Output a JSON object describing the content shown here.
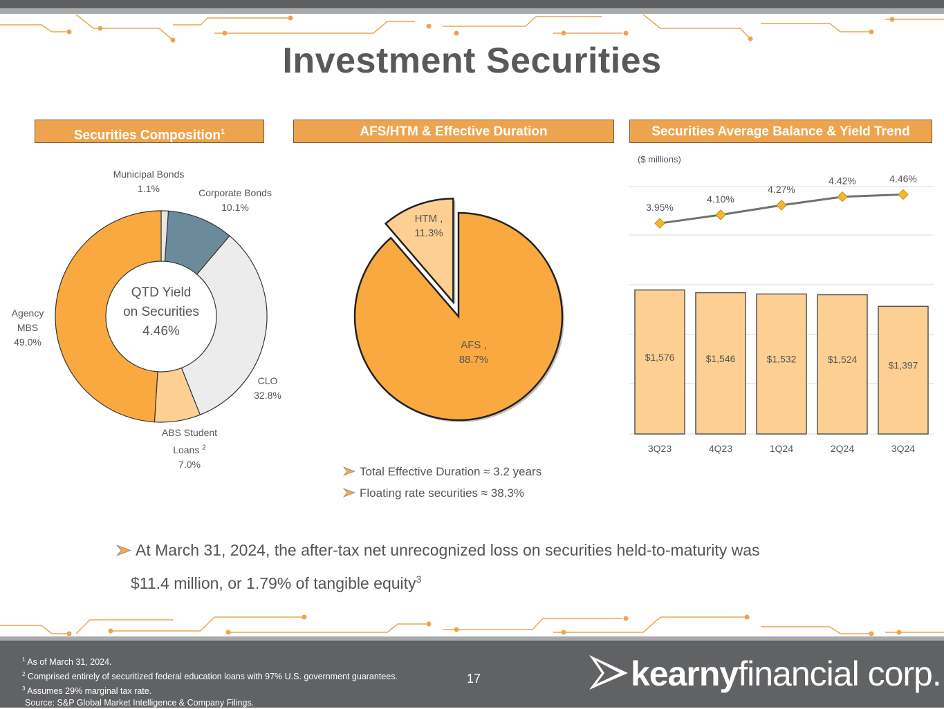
{
  "slide_title": "Investment Securities",
  "panels": {
    "composition_title": "Securities Composition",
    "composition_sup": "1",
    "afs_title": "AFS/HTM & Effective Duration",
    "trend_title": "Securities Average Balance & Yield Trend",
    "trend_units": "($ millions)"
  },
  "donut_center": {
    "line1": "QTD Yield",
    "line2": "on Securities",
    "line3": "4.46%"
  },
  "duration_bullets": [
    "Total Effective Duration ≈ 3.2 years",
    "Floating rate securities ≈ 38.3%"
  ],
  "main_bullet": {
    "line1": "At March 31, 2024, the after-tax net unrecognized loss on securities held-to-maturity was",
    "line2": "$11.4 million, or 1.79% of tangible equity",
    "sup": "3"
  },
  "footnotes": [
    {
      "sup": "1",
      "text": " As of March 31, 2024."
    },
    {
      "sup": "2",
      "text": " Comprised entirely of securitized federal education loans with 97% U.S. government guarantees."
    },
    {
      "sup": "3",
      "text": " Assumes 29% marginal tax rate."
    },
    {
      "sup": "",
      "text": "Source: S&P Global Market Intelligence & Company Filings."
    }
  ],
  "page_number": "17",
  "logo": {
    "bold": "kearny",
    "light": "financial corp."
  },
  "colors": {
    "orange": "#f9a940",
    "light_orange": "#fdcf93",
    "slate": "#6b8b9b",
    "light_gray": "#ececec",
    "header": "#eea44e",
    "line": "#707070",
    "marker": "#f5b731"
  },
  "chart_data": [
    {
      "type": "pie",
      "subtype": "donut",
      "title": "Securities Composition",
      "slices": [
        {
          "label": "Municipal Bonds",
          "value": 1.1,
          "display": "1.1%",
          "color": "#e6e6e6"
        },
        {
          "label": "Corporate Bonds",
          "value": 10.1,
          "display": "10.1%",
          "color": "#6b8b9b"
        },
        {
          "label": "CLO",
          "value": 32.8,
          "display": "32.8%",
          "color": "#ececec"
        },
        {
          "label": "ABS Student Loans",
          "label_sup": "2",
          "value": 7.0,
          "display": "7.0%",
          "color": "#fdcf93"
        },
        {
          "label": "Agency MBS",
          "value": 49.0,
          "display": "49.0%",
          "color": "#f9a940"
        }
      ]
    },
    {
      "type": "pie",
      "title": "AFS/HTM & Effective Duration",
      "slices": [
        {
          "label": "HTM ,",
          "value": 11.3,
          "display": "11.3%",
          "color": "#fdcf93",
          "exploded": true
        },
        {
          "label": "AFS ,",
          "value": 88.7,
          "display": "88.7%",
          "color": "#f9a940"
        }
      ]
    },
    {
      "type": "bar",
      "title": "Securities Average Balance & Yield Trend",
      "units": "($ millions)",
      "categories": [
        "3Q23",
        "4Q23",
        "1Q24",
        "2Q24",
        "3Q24"
      ],
      "series": [
        {
          "values": [
            1576,
            1546,
            1532,
            1524,
            1397
          ],
          "labels": [
            "$1,576",
            "$1,546",
            "$1,532",
            "$1,524",
            "$1,397"
          ],
          "kind": "bar"
        },
        {
          "values": [
            3.95,
            4.1,
            4.27,
            4.42,
            4.46
          ],
          "labels": [
            "3.95%",
            "4.10%",
            "4.27%",
            "4.42%",
            "4.46%"
          ],
          "kind": "line"
        }
      ],
      "bar_ylim": [
        0,
        1800
      ],
      "line_ylim": [
        3.5,
        4.6
      ],
      "grid": true
    }
  ]
}
